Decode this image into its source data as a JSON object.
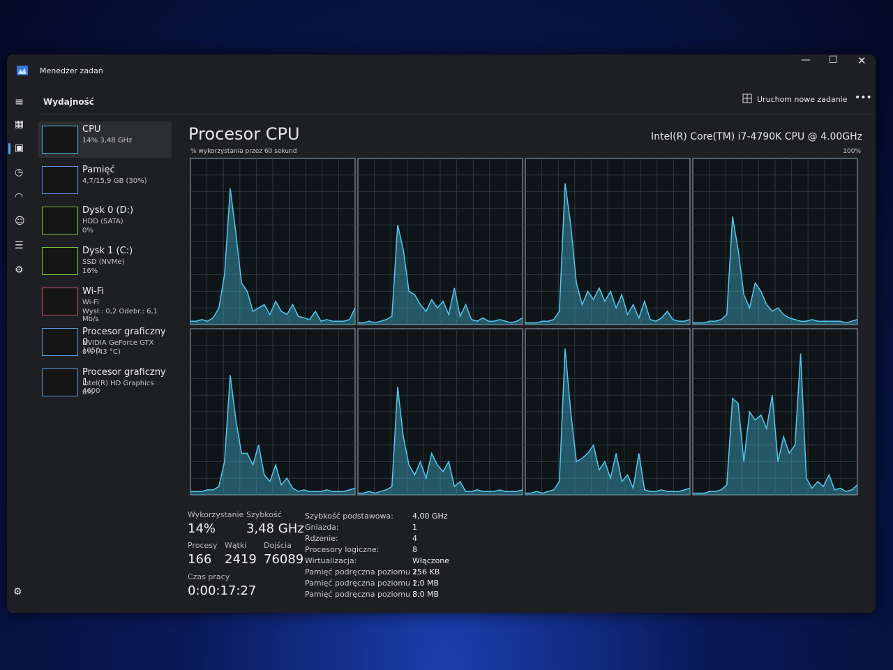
{
  "window": {
    "title": "Menedżer zadań"
  },
  "header": {
    "title": "Wydajność",
    "action": "Uruchom nowe zadanie"
  },
  "sidebar": [
    {
      "name": "CPU",
      "lines": [
        "14% 3,48 GHz"
      ]
    },
    {
      "name": "Pamięć",
      "lines": [
        "4,7/15,9 GB (30%)"
      ]
    },
    {
      "name": "Dysk 0 (D:)",
      "lines": [
        "HDD (SATA)",
        "0%"
      ]
    },
    {
      "name": "Dysk 1 (C:)",
      "lines": [
        "SSD (NVMe)",
        "16%"
      ]
    },
    {
      "name": "Wi-Fi",
      "lines": [
        "Wi-Fi",
        "Wysł.: 0,2 Odebr.: 6,1 Mb/s"
      ]
    },
    {
      "name": "Procesor graficzny 0",
      "lines": [
        "NVIDIA GeForce GTX 1050",
        "0% (43 °C)"
      ]
    },
    {
      "name": "Procesor graficzny 1",
      "lines": [
        "Intel(R) HD Graphics 4600",
        "0%"
      ]
    }
  ],
  "main": {
    "title": "Procesor CPU",
    "cpu_model": "Intel(R) Core(TM) i7-4790K CPU @ 4.00GHz",
    "graph_label": "% wykorzystania przez 60 sekund",
    "graph_scale": {
      "value": 100,
      "label": "100%"
    },
    "cores": [
      {
        "values": [
          2,
          2,
          3,
          2,
          4,
          10,
          30,
          82,
          55,
          25,
          20,
          8,
          10,
          12,
          6,
          14,
          8,
          6,
          12,
          5,
          4,
          3,
          8,
          2,
          3,
          2,
          2,
          2,
          3,
          10
        ]
      },
      {
        "values": [
          1,
          1,
          2,
          1,
          2,
          3,
          5,
          60,
          45,
          20,
          18,
          12,
          8,
          15,
          10,
          14,
          6,
          22,
          5,
          12,
          3,
          2,
          4,
          2,
          2,
          3,
          2,
          1,
          2,
          4
        ]
      },
      {
        "values": [
          1,
          1,
          1,
          2,
          2,
          3,
          8,
          85,
          60,
          25,
          12,
          20,
          15,
          22,
          14,
          20,
          10,
          18,
          6,
          12,
          4,
          14,
          3,
          2,
          4,
          8,
          3,
          2,
          2,
          3
        ]
      },
      {
        "values": [
          1,
          1,
          1,
          2,
          2,
          3,
          6,
          65,
          45,
          18,
          10,
          25,
          20,
          12,
          8,
          10,
          6,
          4,
          3,
          2,
          2,
          3,
          2,
          2,
          2,
          2,
          2,
          1,
          2,
          3
        ]
      },
      {
        "values": [
          2,
          2,
          2,
          3,
          3,
          5,
          20,
          72,
          45,
          25,
          25,
          18,
          30,
          12,
          8,
          18,
          6,
          10,
          4,
          2,
          3,
          2,
          2,
          2,
          3,
          2,
          2,
          2,
          3,
          4
        ]
      },
      {
        "values": [
          1,
          1,
          2,
          1,
          2,
          3,
          5,
          65,
          35,
          18,
          12,
          20,
          10,
          25,
          18,
          14,
          20,
          5,
          8,
          2,
          2,
          3,
          2,
          2,
          2,
          3,
          2,
          2,
          2,
          3
        ]
      },
      {
        "values": [
          1,
          1,
          2,
          1,
          2,
          3,
          8,
          88,
          50,
          20,
          22,
          25,
          30,
          15,
          20,
          10,
          25,
          8,
          12,
          4,
          25,
          3,
          2,
          2,
          3,
          2,
          2,
          2,
          3,
          4
        ]
      },
      {
        "values": [
          1,
          1,
          1,
          2,
          2,
          3,
          6,
          58,
          55,
          20,
          50,
          45,
          48,
          40,
          60,
          20,
          35,
          25,
          30,
          85,
          10,
          4,
          8,
          5,
          12,
          3,
          4,
          2,
          3,
          6
        ]
      }
    ],
    "stats": [
      {
        "label": "Wykorzystanie",
        "value": "14%"
      },
      {
        "label": "Szybkość",
        "value": "3,48 GHz"
      },
      {
        "label": "Procesy",
        "value": 166
      },
      {
        "label": "Wątki",
        "value": 2419
      },
      {
        "label": "Dojścia",
        "value": 76089
      },
      {
        "label": "Czas pracy",
        "value": "0:00:17:27"
      }
    ],
    "details": [
      {
        "label": "Szybkość podstawowa:",
        "value": "4,00 GHz"
      },
      {
        "label": "Gniazda:",
        "value": 1
      },
      {
        "label": "Rdzenie:",
        "value": 4
      },
      {
        "label": "Procesory logiczne:",
        "value": 8
      },
      {
        "label": "Wirtualizacja:",
        "value": "Włączone"
      },
      {
        "label": "Pamięć podręczna poziomu 1:",
        "value": "256 KB"
      },
      {
        "label": "Pamięć podręczna poziomu 2:",
        "value": "1,0 MB"
      },
      {
        "label": "Pamięć podręczna poziomu 3:",
        "value": "8,0 MB"
      }
    ]
  }
}
